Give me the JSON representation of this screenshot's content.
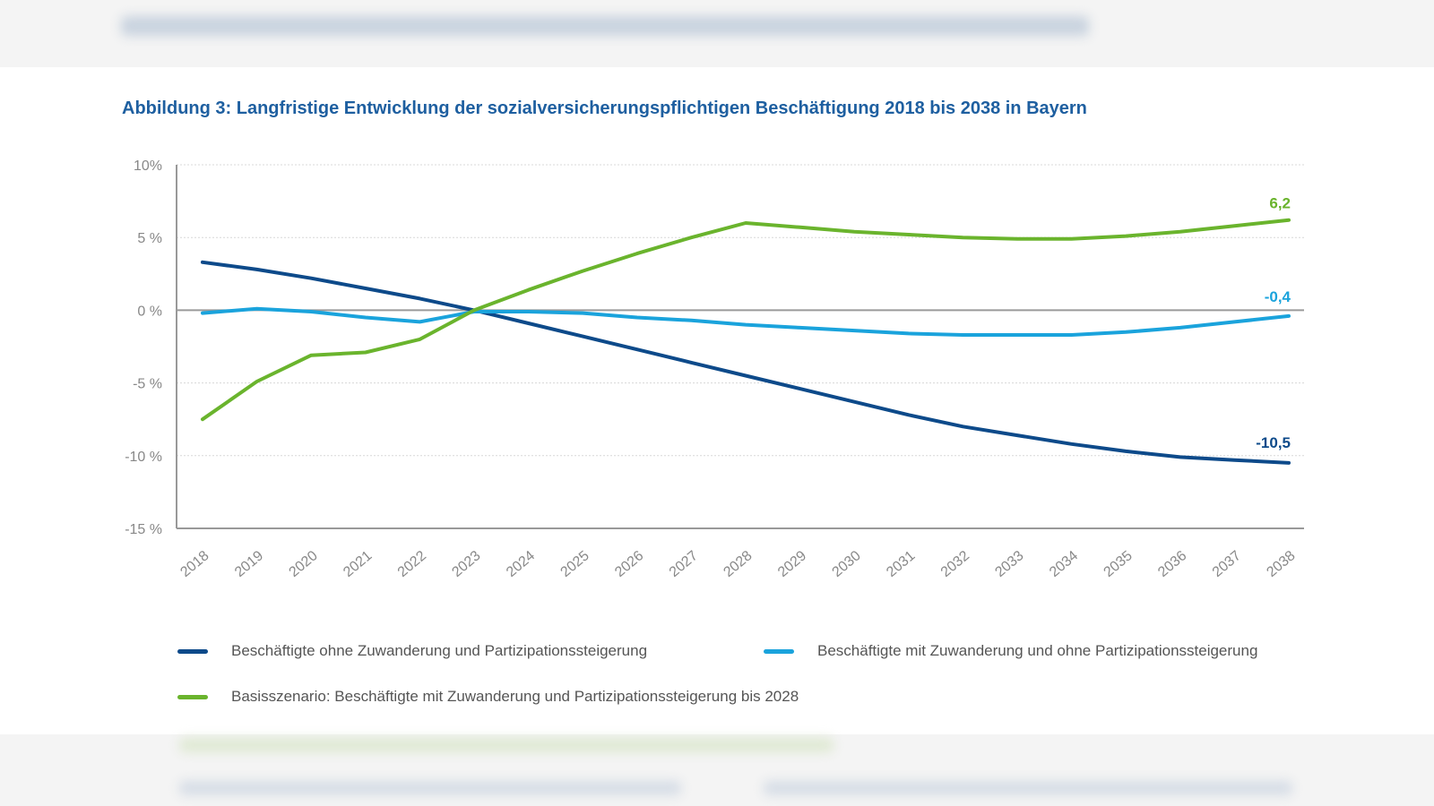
{
  "chart_data": {
    "type": "line",
    "title": "Abbildung 3: Langfristige Entwicklung der sozialversicherungspflichtigen Beschäftigung 2018 bis 2038 in Bayern",
    "x": [
      2018,
      2019,
      2020,
      2021,
      2022,
      2023,
      2024,
      2025,
      2026,
      2027,
      2028,
      2029,
      2030,
      2031,
      2032,
      2033,
      2034,
      2035,
      2036,
      2037,
      2038
    ],
    "ylim": [
      -15,
      10
    ],
    "yticks": [
      10,
      5,
      0,
      -5,
      -10,
      -15
    ],
    "ytick_labels": [
      "10%",
      "5 %",
      "0 %",
      "-5 %",
      "-10 %",
      "-15 %"
    ],
    "grid": true,
    "legend_placement": "bottom",
    "series": [
      {
        "name": "Beschäftigte ohne Zuwanderung und Partizipationssteigerung",
        "color": "#0d4a8a",
        "end_label": "-10,5",
        "values": [
          3.3,
          2.8,
          2.2,
          1.5,
          0.8,
          0.0,
          -0.9,
          -1.8,
          -2.7,
          -3.6,
          -4.5,
          -5.4,
          -6.3,
          -7.2,
          -8.0,
          -8.6,
          -9.2,
          -9.7,
          -10.1,
          -10.3,
          -10.5
        ]
      },
      {
        "name": "Beschäftigte mit Zuwanderung und ohne Partizipationssteigerung",
        "color": "#1aa3dc",
        "end_label": "-0,4",
        "values": [
          -0.2,
          0.1,
          -0.1,
          -0.5,
          -0.8,
          -0.1,
          -0.1,
          -0.2,
          -0.5,
          -0.7,
          -1.0,
          -1.2,
          -1.4,
          -1.6,
          -1.7,
          -1.7,
          -1.7,
          -1.5,
          -1.2,
          -0.8,
          -0.4
        ]
      },
      {
        "name": "Basisszenario: Beschäftigte mit Zuwanderung und Partizipationssteigerung bis 2028",
        "color": "#6ab42d",
        "end_label": "6,2",
        "values": [
          -7.5,
          -4.9,
          -3.1,
          -2.9,
          -2.0,
          0.0,
          1.4,
          2.7,
          3.9,
          5.0,
          6.0,
          5.7,
          5.4,
          5.2,
          5.0,
          4.9,
          4.9,
          5.1,
          5.4,
          5.8,
          6.2
        ]
      }
    ]
  }
}
